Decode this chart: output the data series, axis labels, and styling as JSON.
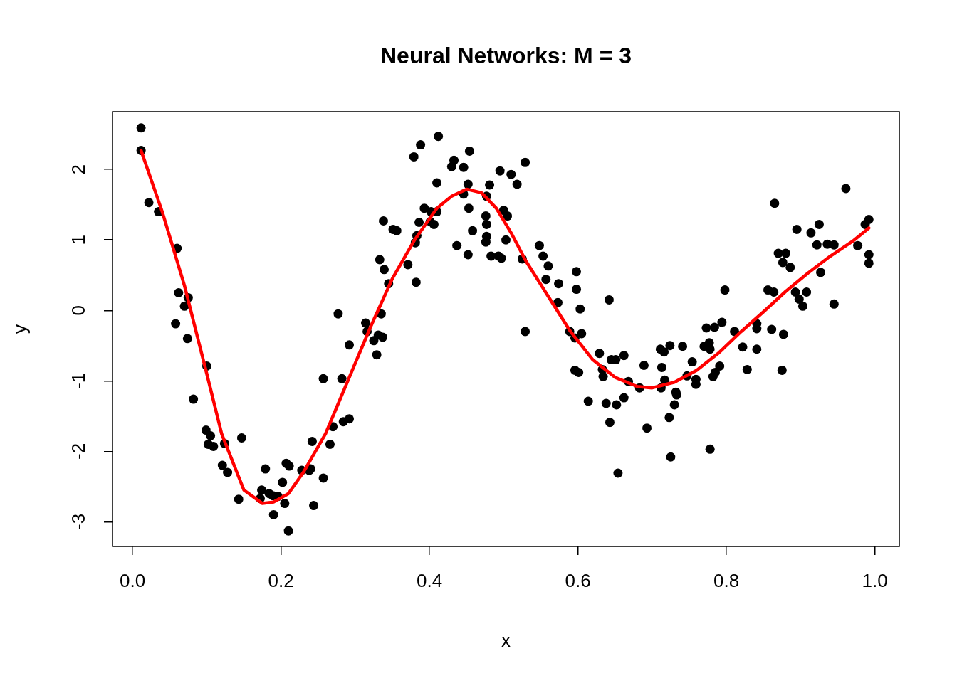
{
  "chart_data": {
    "type": "scatter",
    "title": "Neural Networks: M = 3",
    "xlabel": "x",
    "ylabel": "y",
    "xlim": [
      -0.027,
      1.033
    ],
    "ylim": [
      -3.35,
      2.82
    ],
    "xticks": [
      {
        "value": 0,
        "label": "0.0"
      },
      0.2,
      0.4,
      0.6,
      0.8,
      {
        "value": 1,
        "label": "1.0"
      }
    ],
    "yticks": [
      -3,
      -2,
      -1,
      0,
      1,
      2
    ],
    "grid": false,
    "series": [
      {
        "color": "#000000",
        "marker": "circle",
        "x": [
          0.0115,
          0.0115,
          0.022,
          0.035,
          0.06,
          0.062,
          0.07,
          0.075,
          0.058,
          0.074,
          0.082,
          0.1,
          0.099,
          0.102,
          0.105,
          0.109,
          0.124,
          0.121,
          0.128,
          0.147,
          0.143,
          0.174,
          0.179,
          0.172,
          0.184,
          0.189,
          0.196,
          0.19,
          0.202,
          0.207,
          0.211,
          0.205,
          0.21,
          0.228,
          0.24,
          0.238,
          0.244,
          0.242,
          0.257,
          0.257,
          0.266,
          0.27,
          0.277,
          0.282,
          0.284,
          0.292,
          0.292,
          0.314,
          0.316,
          0.325,
          0.329,
          0.331,
          0.335,
          0.337,
          0.333,
          0.339,
          0.345,
          0.338,
          0.351,
          0.356,
          0.371,
          0.379,
          0.388,
          0.381,
          0.383,
          0.382,
          0.386,
          0.393,
          0.401,
          0.402,
          0.406,
          0.41,
          0.412,
          0.41,
          0.43,
          0.433,
          0.446,
          0.454,
          0.437,
          0.446,
          0.452,
          0.453,
          0.458,
          0.452,
          0.477,
          0.481,
          0.476,
          0.477,
          0.477,
          0.476,
          0.483,
          0.493,
          0.497,
          0.495,
          0.5,
          0.505,
          0.503,
          0.51,
          0.518,
          0.529,
          0.525,
          0.529,
          0.548,
          0.553,
          0.56,
          0.557,
          0.574,
          0.573,
          0.598,
          0.598,
          0.589,
          0.596,
          0.605,
          0.603,
          0.596,
          0.601,
          0.614,
          0.629,
          0.633,
          0.634,
          0.638,
          0.642,
          0.643,
          0.645,
          0.651,
          0.652,
          0.654,
          0.662,
          0.662,
          0.668,
          0.683,
          0.689,
          0.693,
          0.711,
          0.716,
          0.713,
          0.712,
          0.717,
          0.724,
          0.723,
          0.725,
          0.73,
          0.732,
          0.733,
          0.741,
          0.747,
          0.754,
          0.759,
          0.759,
          0.77,
          0.773,
          0.777,
          0.778,
          0.778,
          0.782,
          0.784,
          0.785,
          0.791,
          0.794,
          0.798,
          0.811,
          0.822,
          0.828,
          0.841,
          0.841,
          0.841,
          0.856,
          0.864,
          0.861,
          0.865,
          0.87,
          0.88,
          0.876,
          0.886,
          0.877,
          0.875,
          0.895,
          0.893,
          0.898,
          0.903,
          0.908,
          0.914,
          0.922,
          0.925,
          0.927,
          0.936,
          0.945,
          0.945,
          0.961,
          0.977,
          0.987,
          0.992,
          0.992,
          0.992
        ],
        "values": [
          2.59,
          2.27,
          1.53,
          1.4,
          0.88,
          0.25,
          0.06,
          0.18,
          -0.19,
          -0.4,
          -1.26,
          -0.79,
          -1.7,
          -1.9,
          -1.78,
          -1.93,
          -1.89,
          -2.2,
          -2.3,
          -1.81,
          -2.68,
          -2.55,
          -2.25,
          -2.67,
          -2.6,
          -2.63,
          -2.64,
          -2.9,
          -2.44,
          -2.17,
          -2.21,
          -2.74,
          -3.13,
          -2.27,
          -2.25,
          -2.27,
          -2.77,
          -1.86,
          -2.38,
          -0.97,
          -1.9,
          -1.65,
          -0.05,
          -0.97,
          -1.58,
          -1.54,
          -0.49,
          -0.18,
          -0.3,
          -0.43,
          -0.63,
          -0.35,
          -0.05,
          -0.38,
          0.72,
          0.58,
          0.38,
          1.27,
          1.15,
          1.13,
          0.65,
          2.18,
          2.35,
          0.96,
          1.06,
          0.4,
          1.25,
          1.45,
          1.26,
          1.4,
          1.22,
          1.4,
          2.47,
          1.81,
          2.04,
          2.13,
          2.03,
          2.26,
          0.92,
          1.65,
          1.79,
          1.45,
          1.13,
          0.79,
          1.62,
          1.78,
          1.34,
          1.22,
          1.05,
          0.97,
          0.77,
          0.77,
          0.74,
          1.98,
          1.42,
          1.34,
          1.0,
          1.93,
          1.79,
          2.1,
          0.73,
          -0.3,
          0.92,
          0.77,
          0.63,
          0.44,
          0.38,
          0.11,
          0.55,
          0.3,
          -0.3,
          -0.39,
          -0.33,
          0.02,
          -0.85,
          -0.88,
          -1.29,
          -0.61,
          -0.84,
          -0.94,
          -1.32,
          0.15,
          -1.59,
          -0.7,
          -0.7,
          -1.34,
          -2.31,
          -0.64,
          -1.24,
          -1.01,
          -1.1,
          -0.78,
          -1.67,
          -0.55,
          -0.59,
          -0.81,
          -1.1,
          -0.99,
          -0.5,
          -1.52,
          -2.08,
          -1.34,
          -1.16,
          -1.2,
          -0.51,
          -0.93,
          -0.73,
          -0.98,
          -1.05,
          -0.51,
          -0.25,
          -0.46,
          -0.55,
          -1.97,
          -0.94,
          -0.24,
          -0.88,
          -0.79,
          -0.17,
          0.29,
          -0.3,
          -0.52,
          -0.84,
          -0.19,
          -0.26,
          -0.55,
          0.29,
          0.26,
          -0.27,
          1.52,
          0.81,
          0.81,
          0.68,
          0.61,
          -0.34,
          -0.85,
          1.15,
          0.26,
          0.16,
          0.06,
          0.26,
          1.1,
          0.93,
          1.22,
          0.54,
          0.94,
          0.93,
          0.09,
          1.73,
          0.92,
          1.22,
          1.29,
          0.79,
          0.67
        ]
      },
      {
        "type": "line",
        "color": "#ff0000",
        "line_style": "solid",
        "marker": "none",
        "x": [
          0.0115,
          0.04,
          0.07,
          0.1,
          0.12,
          0.15,
          0.175,
          0.19,
          0.21,
          0.23,
          0.26,
          0.29,
          0.32,
          0.35,
          0.38,
          0.41,
          0.43,
          0.45,
          0.47,
          0.49,
          0.51,
          0.53,
          0.56,
          0.59,
          0.62,
          0.65,
          0.68,
          0.7,
          0.73,
          0.76,
          0.79,
          0.82,
          0.85,
          0.88,
          0.91,
          0.94,
          0.97,
          0.992
        ],
        "values": [
          2.27,
          1.4,
          0.35,
          -0.9,
          -1.75,
          -2.55,
          -2.74,
          -2.72,
          -2.6,
          -2.3,
          -1.75,
          -1.0,
          -0.25,
          0.45,
          1.0,
          1.45,
          1.62,
          1.72,
          1.67,
          1.45,
          1.1,
          0.7,
          0.2,
          -0.3,
          -0.7,
          -0.95,
          -1.08,
          -1.1,
          -1.02,
          -0.85,
          -0.6,
          -0.3,
          -0.02,
          0.27,
          0.53,
          0.77,
          0.98,
          1.17
        ]
      }
    ]
  }
}
